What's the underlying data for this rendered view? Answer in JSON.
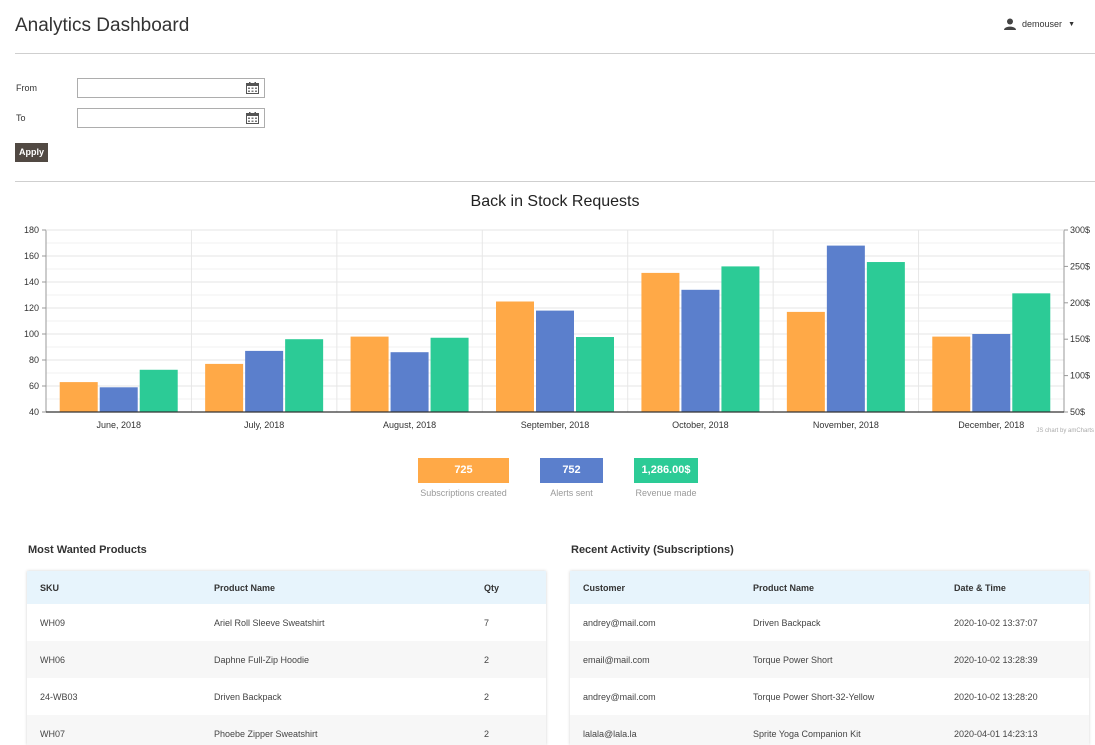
{
  "header": {
    "title": "Analytics Dashboard",
    "username": "demouser"
  },
  "filters": {
    "from_label": "From",
    "to_label": "To",
    "from_value": "",
    "to_value": "",
    "apply_label": "Apply"
  },
  "chart_data": {
    "type": "bar",
    "title": "Back in Stock Requests",
    "categories": [
      "June, 2018",
      "July, 2018",
      "August, 2018",
      "September, 2018",
      "October, 2018",
      "November, 2018",
      "December, 2018"
    ],
    "series": [
      {
        "axis": "left",
        "color": "#ffa947",
        "values": [
          63,
          77,
          98,
          125,
          147,
          117,
          98
        ]
      },
      {
        "axis": "left",
        "color": "#5b7fcc",
        "values": [
          59,
          87,
          86,
          118,
          134,
          168,
          100
        ]
      },
      {
        "axis": "right",
        "color": "#2ccb96",
        "values": [
          108,
          150,
          152,
          153,
          250,
          256,
          213
        ]
      }
    ],
    "ylim": [
      40,
      180
    ],
    "y_ticks": [
      "40",
      "60",
      "80",
      "100",
      "120",
      "140",
      "160",
      "180"
    ],
    "y2lim": [
      50,
      300
    ],
    "y2_ticks": [
      "50$",
      "100$",
      "150$",
      "200$",
      "250$",
      "300$"
    ],
    "grid": true,
    "credit": "JS chart by amCharts"
  },
  "stats": [
    {
      "value": "725",
      "caption": "Subscriptions created"
    },
    {
      "value": "752",
      "caption": "Alerts sent"
    },
    {
      "value": "1,286.00$",
      "caption": "Revenue made"
    }
  ],
  "most_wanted": {
    "title": "Most Wanted Products",
    "columns": [
      "SKU",
      "Product Name",
      "Qty"
    ],
    "rows": [
      [
        "WH09",
        "Ariel Roll Sleeve Sweatshirt",
        "7"
      ],
      [
        "WH06",
        "Daphne Full-Zip Hoodie",
        "2"
      ],
      [
        "24-WB03",
        "Driven Backpack",
        "2"
      ],
      [
        "WH07",
        "Phoebe Zipper Sweatshirt",
        "2"
      ]
    ]
  },
  "recent_activity": {
    "title": "Recent Activity (Subscriptions)",
    "columns": [
      "Customer",
      "Product Name",
      "Date & Time"
    ],
    "rows": [
      [
        "andrey@mail.com",
        "Driven Backpack",
        "2020-10-02 13:37:07"
      ],
      [
        "email@mail.com",
        "Torque Power Short",
        "2020-10-02 13:28:39"
      ],
      [
        "andrey@mail.com",
        "Torque Power Short-32-Yellow",
        "2020-10-02 13:28:20"
      ],
      [
        "lalala@lala.la",
        "Sprite Yoga Companion Kit",
        "2020-04-01 14:23:13"
      ]
    ]
  },
  "icons": {
    "user": "user-icon",
    "calendar": "calendar-icon",
    "caret": "chevron-down-icon"
  }
}
